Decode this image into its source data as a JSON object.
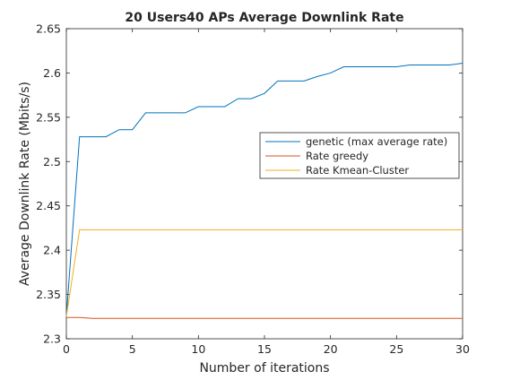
{
  "chart_data": {
    "type": "line",
    "title": "20 Users40 APs Average Downlink Rate",
    "xlabel": "Number of iterations",
    "ylabel": "Average Downlink Rate (Mbits/s)",
    "xlim": [
      0,
      30
    ],
    "ylim": [
      2.3,
      2.65
    ],
    "xticks": [
      0,
      5,
      10,
      15,
      20,
      25,
      30
    ],
    "xtick_labels": [
      "0",
      "5",
      "10",
      "15",
      "20",
      "25",
      "30"
    ],
    "yticks": [
      2.3,
      2.35,
      2.4,
      2.45,
      2.5,
      2.55,
      2.6,
      2.65
    ],
    "ytick_labels": [
      "2.3",
      "2.35",
      "2.4",
      "2.45",
      "2.5",
      "2.55",
      "2.6",
      "2.65"
    ],
    "grid": false,
    "legend_position": "center-right",
    "series": [
      {
        "name": "genetic (max average rate)",
        "color": "#0072BD",
        "x": [
          0,
          1,
          2,
          3,
          4,
          5,
          6,
          7,
          8,
          9,
          10,
          11,
          12,
          13,
          14,
          15,
          16,
          17,
          18,
          19,
          20,
          21,
          22,
          23,
          24,
          25,
          26,
          27,
          28,
          29,
          30
        ],
        "y": [
          2.325,
          2.528,
          2.528,
          2.528,
          2.536,
          2.536,
          2.555,
          2.555,
          2.555,
          2.555,
          2.562,
          2.562,
          2.562,
          2.571,
          2.571,
          2.577,
          2.591,
          2.591,
          2.591,
          2.596,
          2.6,
          2.607,
          2.607,
          2.607,
          2.607,
          2.607,
          2.609,
          2.609,
          2.609,
          2.609,
          2.611
        ]
      },
      {
        "name": "Rate greedy",
        "color": "#D95319",
        "x": [
          0,
          1,
          2,
          3,
          4,
          5,
          6,
          7,
          8,
          9,
          10,
          11,
          12,
          13,
          14,
          15,
          16,
          17,
          18,
          19,
          20,
          21,
          22,
          23,
          24,
          25,
          26,
          27,
          28,
          29,
          30
        ],
        "y": [
          2.324,
          2.324,
          2.323,
          2.323,
          2.323,
          2.323,
          2.323,
          2.323,
          2.323,
          2.323,
          2.323,
          2.323,
          2.323,
          2.323,
          2.323,
          2.323,
          2.323,
          2.323,
          2.323,
          2.323,
          2.323,
          2.323,
          2.323,
          2.323,
          2.323,
          2.323,
          2.323,
          2.323,
          2.323,
          2.323,
          2.323
        ]
      },
      {
        "name": "Rate Kmean-Cluster",
        "color": "#EDB120",
        "x": [
          0,
          1,
          2,
          3,
          4,
          5,
          6,
          7,
          8,
          9,
          10,
          11,
          12,
          13,
          14,
          15,
          16,
          17,
          18,
          19,
          20,
          21,
          22,
          23,
          24,
          25,
          26,
          27,
          28,
          29,
          30
        ],
        "y": [
          2.325,
          2.423,
          2.423,
          2.423,
          2.423,
          2.423,
          2.423,
          2.423,
          2.423,
          2.423,
          2.423,
          2.423,
          2.423,
          2.423,
          2.423,
          2.423,
          2.423,
          2.423,
          2.423,
          2.423,
          2.423,
          2.423,
          2.423,
          2.423,
          2.423,
          2.423,
          2.423,
          2.423,
          2.423,
          2.423,
          2.423
        ]
      }
    ]
  }
}
